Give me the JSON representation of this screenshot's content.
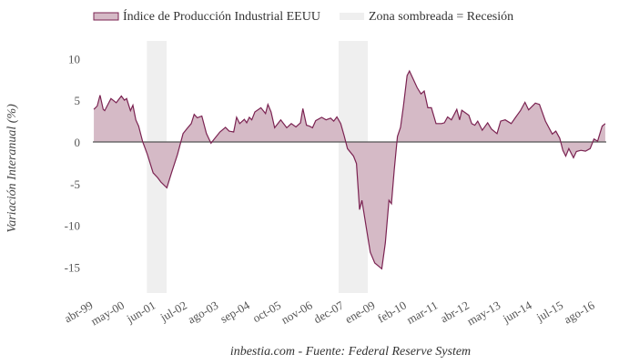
{
  "chart_data": {
    "type": "area",
    "title": "",
    "xlabel": "",
    "ylabel": "Variación Interanual (%)",
    "x_units": "months since abr-99",
    "xlim": [
      -0.4,
      212.5
    ],
    "ylim": [
      -18.1,
      12.1
    ],
    "yticks": [
      10,
      5,
      0,
      -5,
      -10,
      -15
    ],
    "xtick_labels": [
      "abr-99",
      "may-00",
      "jun-01",
      "jul-02",
      "ago-03",
      "sep-04",
      "oct-05",
      "nov-06",
      "dec-07",
      "ene-09",
      "feb-10",
      "mar-11",
      "abr-12",
      "may-13",
      "jun-14",
      "jul-15",
      "ago-16"
    ],
    "xtick_step_months": 13,
    "legend": {
      "position": "top",
      "series_label": "Índice de Producción Industrial EEUU",
      "shade_label": "Zona sombreada = Recesión"
    },
    "recessions": [
      [
        22,
        30.2
      ],
      [
        101.5,
        113.6
      ]
    ],
    "series": [
      {
        "name": "Índice de Producción Industrial EEUU",
        "color": "#7b2352",
        "fill": "#d5bac6",
        "x": [
          0,
          1.4,
          2.6,
          3.9,
          4.5,
          7.1,
          9.3,
          11.4,
          12.7,
          13.6,
          15.2,
          16.2,
          17.4,
          18.6,
          20.3,
          22.2,
          24.6,
          26.5,
          27.8,
          30.3,
          32.2,
          34.7,
          37.0,
          38.5,
          40.4,
          41.6,
          42.9,
          44.8,
          46.7,
          48.6,
          49.8,
          52.3,
          54.6,
          56.1,
          58.0,
          59.2,
          60.5,
          62.4,
          63.4,
          64.5,
          65.5,
          66.8,
          69.3,
          71.2,
          72.2,
          73.5,
          75.0,
          77.5,
          80.0,
          81.9,
          83.8,
          85.7,
          86.7,
          88.2,
          89.4,
          90.7,
          92.0,
          94.5,
          96.3,
          98.2,
          99.5,
          100.8,
          102.4,
          103.9,
          105.2,
          107.7,
          108.9,
          110.2,
          111.2,
          114.6,
          116.5,
          119.4,
          120.9,
          122.4,
          123.4,
          124.6,
          125.9,
          127.2,
          128.4,
          129.9,
          130.9,
          134.1,
          135.7,
          137.0,
          138.5,
          140.0,
          141.9,
          144.2,
          145.4,
          146.7,
          148.3,
          150.5,
          151.7,
          152.6,
          155.5,
          156.7,
          158.0,
          159.2,
          161.1,
          163.3,
          164.9,
          167.2,
          168.7,
          170.6,
          173.1,
          175.0,
          176.9,
          178.8,
          180.3,
          183.1,
          184.8,
          187.3,
          190.1,
          191.6,
          193.2,
          194.5,
          195.7,
          197.0,
          198.9,
          200.1,
          202.0,
          203.9,
          205.8,
          207.4,
          208.9,
          210.8,
          212.1
        ],
        "values": [
          3.9,
          4.3,
          5.6,
          3.9,
          3.75,
          5.2,
          4.7,
          5.5,
          5.0,
          5.2,
          3.75,
          4.4,
          2.65,
          1.9,
          0,
          -1.5,
          -3.7,
          -4.3,
          -4.8,
          -5.5,
          -3.7,
          -1.5,
          1.0,
          1.55,
          2.2,
          3.3,
          2.9,
          3.1,
          1.0,
          -0.15,
          0.3,
          1.2,
          1.75,
          1.3,
          1.2,
          2.95,
          2.2,
          2.7,
          2.3,
          2.95,
          2.65,
          3.6,
          4.1,
          3.4,
          4.5,
          3.6,
          1.7,
          2.65,
          1.7,
          2.2,
          1.8,
          2.3,
          4.0,
          2.0,
          1.9,
          1.7,
          2.55,
          2.95,
          2.65,
          2.85,
          2.5,
          3.0,
          2.2,
          0.65,
          -0.8,
          -1.7,
          -2.6,
          -8.1,
          -7.0,
          -13.2,
          -14.5,
          -15.2,
          -12.1,
          -7.0,
          -7.4,
          -3.35,
          0.65,
          1.75,
          4.3,
          7.95,
          8.5,
          6.5,
          5.75,
          6.1,
          4.1,
          4.1,
          2.2,
          2.2,
          2.3,
          3.0,
          2.65,
          3.9,
          2.65,
          3.8,
          3.2,
          2.2,
          2.0,
          2.5,
          1.4,
          2.3,
          1.55,
          1.0,
          2.5,
          2.65,
          2.2,
          3.0,
          3.75,
          4.75,
          3.85,
          4.65,
          4.5,
          2.5,
          0.95,
          1.3,
          0.45,
          -1.0,
          -1.7,
          -0.8,
          -1.9,
          -1.15,
          -1.0,
          -1.1,
          -0.8,
          0.35,
          0.1,
          1.9,
          2.2
        ]
      }
    ],
    "recession_color": "#efefef",
    "zero_line_color": "#555555",
    "footer": "inbestia.com - Fuente: Federal Reserve System"
  }
}
